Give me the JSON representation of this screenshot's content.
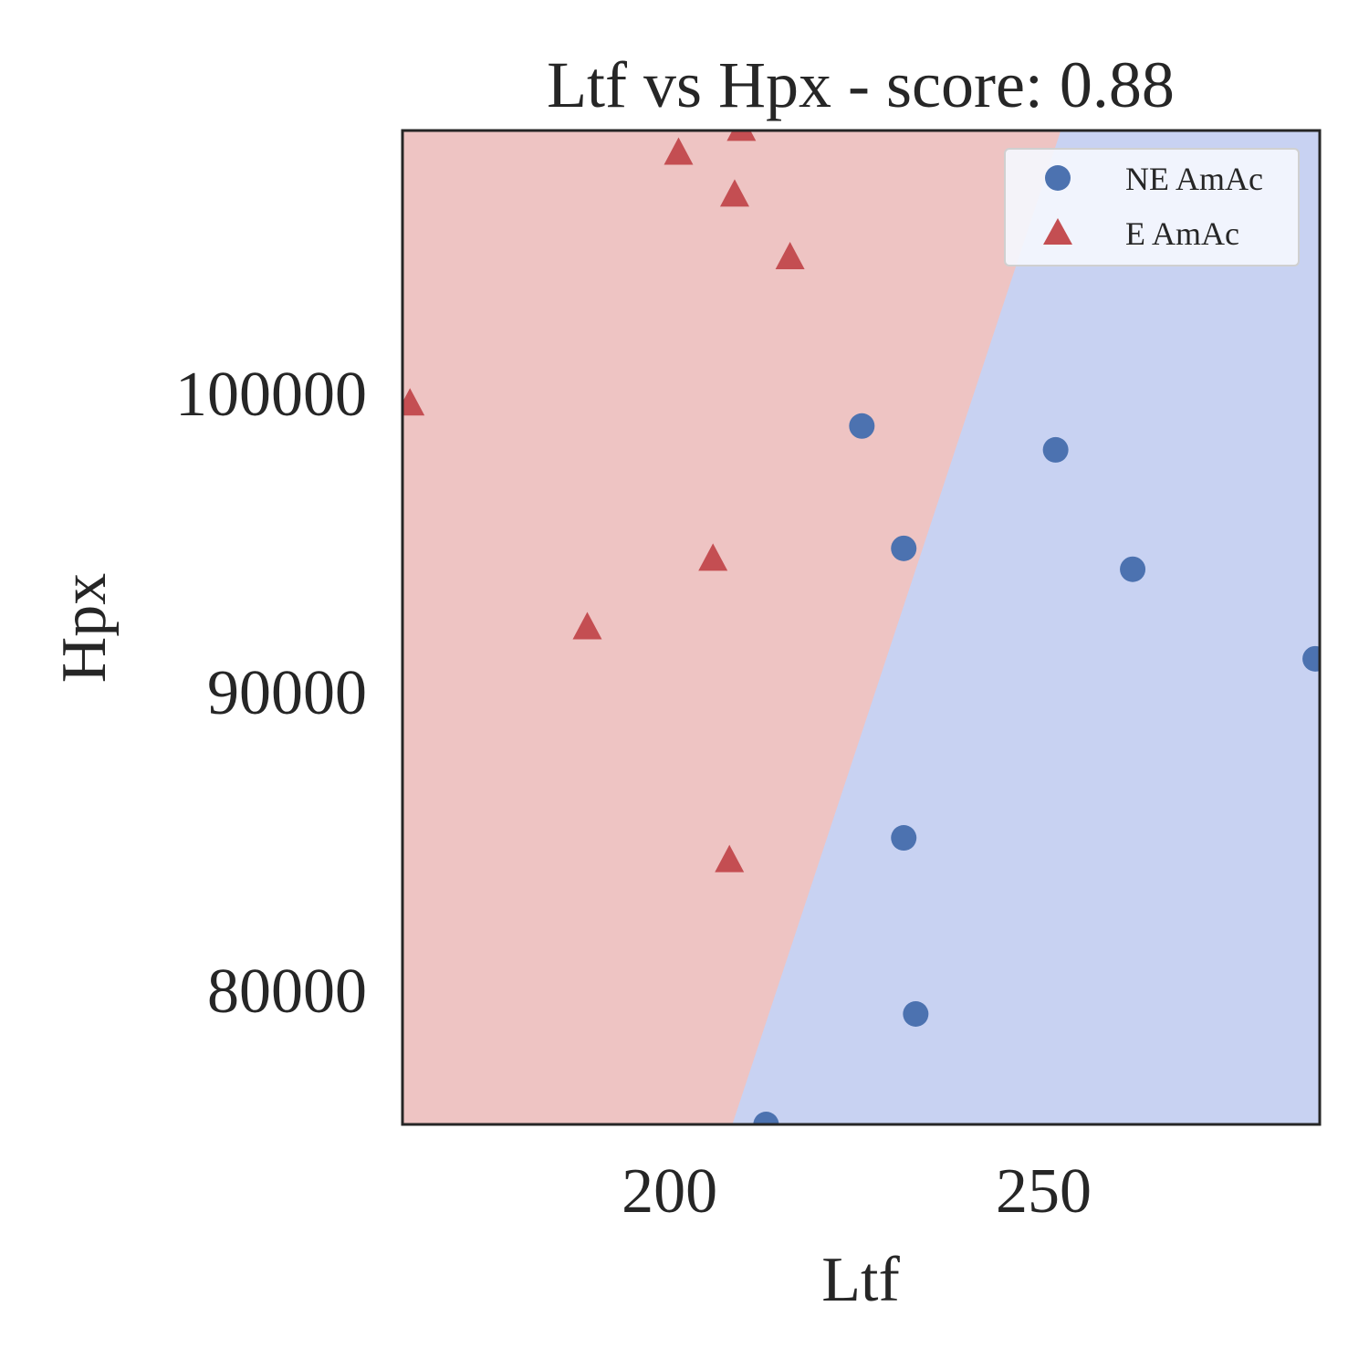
{
  "chart_data": {
    "type": "scatter",
    "title": "Ltf vs Hpx - score: 0.88",
    "xlabel": "Ltf",
    "ylabel": "Hpx",
    "xlim": [
      164.3,
      286.9
    ],
    "ylim": [
      75500,
      108800
    ],
    "xticks": [
      200,
      250
    ],
    "yticks": [
      80000,
      90000,
      100000
    ],
    "grid": false,
    "legend_position": "top-right",
    "decision_regions": {
      "E AmAc": "#eec4c3",
      "NE AmAc": "#c8d2f2",
      "boundary": [
        [
          208.4,
          75500
        ],
        [
          252.3,
          108800
        ]
      ]
    },
    "series": [
      {
        "name": "NE AmAc",
        "marker": "circle",
        "color": "#4c72b0",
        "points": [
          [
            225.7,
            98900
          ],
          [
            251.6,
            98100
          ],
          [
            231.3,
            94800
          ],
          [
            261.9,
            94100
          ],
          [
            286.3,
            91100
          ],
          [
            231.3,
            85100
          ],
          [
            232.9,
            79200
          ],
          [
            212.9,
            75500
          ]
        ]
      },
      {
        "name": "E AmAc",
        "marker": "triangle",
        "color": "#c44e52",
        "points": [
          [
            209.6,
            108800
          ],
          [
            201.2,
            108000
          ],
          [
            208.7,
            106600
          ],
          [
            216.1,
            104500
          ],
          [
            165.3,
            99600
          ],
          [
            205.8,
            94400
          ],
          [
            189.0,
            92100
          ],
          [
            208.0,
            84300
          ]
        ]
      }
    ]
  }
}
